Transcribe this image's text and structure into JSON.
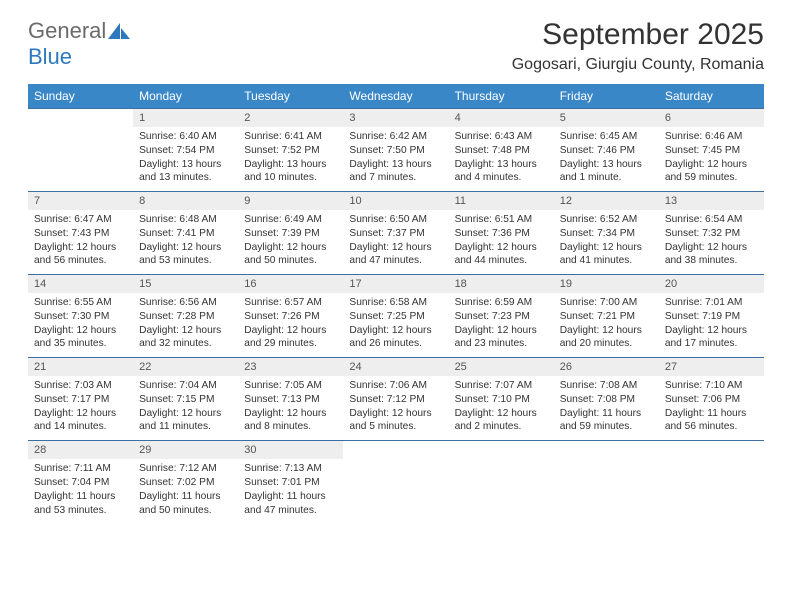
{
  "logo": {
    "general": "General",
    "blue": "Blue"
  },
  "header": {
    "title": "September 2025",
    "location": "Gogosari, Giurgiu County, Romania"
  },
  "colors": {
    "header_bg": "#3a87c8",
    "header_text": "#ffffff",
    "daynum_bg": "#eeeeee",
    "row_border": "#3a6fa0",
    "body_bg": "#ffffff",
    "logo_gray": "#6a6a6a",
    "logo_blue": "#2f78bd"
  },
  "weekdays": [
    "Sunday",
    "Monday",
    "Tuesday",
    "Wednesday",
    "Thursday",
    "Friday",
    "Saturday"
  ],
  "weeks": [
    {
      "nums": [
        "",
        "1",
        "2",
        "3",
        "4",
        "5",
        "6"
      ],
      "cells": [
        "",
        "Sunrise: 6:40 AM\nSunset: 7:54 PM\nDaylight: 13 hours and 13 minutes.",
        "Sunrise: 6:41 AM\nSunset: 7:52 PM\nDaylight: 13 hours and 10 minutes.",
        "Sunrise: 6:42 AM\nSunset: 7:50 PM\nDaylight: 13 hours and 7 minutes.",
        "Sunrise: 6:43 AM\nSunset: 7:48 PM\nDaylight: 13 hours and 4 minutes.",
        "Sunrise: 6:45 AM\nSunset: 7:46 PM\nDaylight: 13 hours and 1 minute.",
        "Sunrise: 6:46 AM\nSunset: 7:45 PM\nDaylight: 12 hours and 59 minutes."
      ]
    },
    {
      "nums": [
        "7",
        "8",
        "9",
        "10",
        "11",
        "12",
        "13"
      ],
      "cells": [
        "Sunrise: 6:47 AM\nSunset: 7:43 PM\nDaylight: 12 hours and 56 minutes.",
        "Sunrise: 6:48 AM\nSunset: 7:41 PM\nDaylight: 12 hours and 53 minutes.",
        "Sunrise: 6:49 AM\nSunset: 7:39 PM\nDaylight: 12 hours and 50 minutes.",
        "Sunrise: 6:50 AM\nSunset: 7:37 PM\nDaylight: 12 hours and 47 minutes.",
        "Sunrise: 6:51 AM\nSunset: 7:36 PM\nDaylight: 12 hours and 44 minutes.",
        "Sunrise: 6:52 AM\nSunset: 7:34 PM\nDaylight: 12 hours and 41 minutes.",
        "Sunrise: 6:54 AM\nSunset: 7:32 PM\nDaylight: 12 hours and 38 minutes."
      ]
    },
    {
      "nums": [
        "14",
        "15",
        "16",
        "17",
        "18",
        "19",
        "20"
      ],
      "cells": [
        "Sunrise: 6:55 AM\nSunset: 7:30 PM\nDaylight: 12 hours and 35 minutes.",
        "Sunrise: 6:56 AM\nSunset: 7:28 PM\nDaylight: 12 hours and 32 minutes.",
        "Sunrise: 6:57 AM\nSunset: 7:26 PM\nDaylight: 12 hours and 29 minutes.",
        "Sunrise: 6:58 AM\nSunset: 7:25 PM\nDaylight: 12 hours and 26 minutes.",
        "Sunrise: 6:59 AM\nSunset: 7:23 PM\nDaylight: 12 hours and 23 minutes.",
        "Sunrise: 7:00 AM\nSunset: 7:21 PM\nDaylight: 12 hours and 20 minutes.",
        "Sunrise: 7:01 AM\nSunset: 7:19 PM\nDaylight: 12 hours and 17 minutes."
      ]
    },
    {
      "nums": [
        "21",
        "22",
        "23",
        "24",
        "25",
        "26",
        "27"
      ],
      "cells": [
        "Sunrise: 7:03 AM\nSunset: 7:17 PM\nDaylight: 12 hours and 14 minutes.",
        "Sunrise: 7:04 AM\nSunset: 7:15 PM\nDaylight: 12 hours and 11 minutes.",
        "Sunrise: 7:05 AM\nSunset: 7:13 PM\nDaylight: 12 hours and 8 minutes.",
        "Sunrise: 7:06 AM\nSunset: 7:12 PM\nDaylight: 12 hours and 5 minutes.",
        "Sunrise: 7:07 AM\nSunset: 7:10 PM\nDaylight: 12 hours and 2 minutes.",
        "Sunrise: 7:08 AM\nSunset: 7:08 PM\nDaylight: 11 hours and 59 minutes.",
        "Sunrise: 7:10 AM\nSunset: 7:06 PM\nDaylight: 11 hours and 56 minutes."
      ]
    },
    {
      "nums": [
        "28",
        "29",
        "30",
        "",
        "",
        "",
        ""
      ],
      "cells": [
        "Sunrise: 7:11 AM\nSunset: 7:04 PM\nDaylight: 11 hours and 53 minutes.",
        "Sunrise: 7:12 AM\nSunset: 7:02 PM\nDaylight: 11 hours and 50 minutes.",
        "Sunrise: 7:13 AM\nSunset: 7:01 PM\nDaylight: 11 hours and 47 minutes.",
        "",
        "",
        "",
        ""
      ]
    }
  ]
}
